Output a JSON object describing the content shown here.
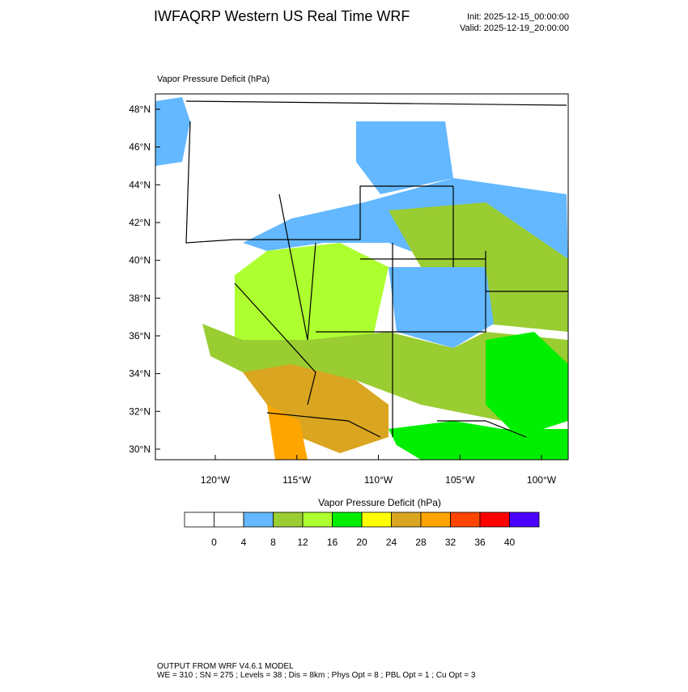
{
  "header": {
    "title": "IWFAQRP Western US Real Time WRF",
    "init": "Init: 2025-12-15_00:00:00",
    "valid": "Valid: 2025-12-19_20:00:00"
  },
  "map": {
    "label": "Vapor Pressure Deficit   (hPa)",
    "lat_ticks": [
      {
        "value": 48,
        "label": "48°N"
      },
      {
        "value": 46,
        "label": "46°N"
      },
      {
        "value": 44,
        "label": "44°N"
      },
      {
        "value": 42,
        "label": "42°N"
      },
      {
        "value": 40,
        "label": "40°N"
      },
      {
        "value": 38,
        "label": "38°N"
      },
      {
        "value": 36,
        "label": "36°N"
      },
      {
        "value": 34,
        "label": "34°N"
      },
      {
        "value": 32,
        "label": "32°N"
      },
      {
        "value": 30,
        "label": "30°N"
      }
    ],
    "lon_ticks": [
      {
        "value": -120,
        "label": "120°W"
      },
      {
        "value": -115,
        "label": "115°W"
      },
      {
        "value": -110,
        "label": "110°W"
      },
      {
        "value": -105,
        "label": "105°W"
      },
      {
        "value": -100,
        "label": "100°W"
      }
    ]
  },
  "colorbar": {
    "title": "Vapor Pressure Deficit  (hPa)",
    "levels": [
      0,
      4,
      8,
      12,
      16,
      20,
      24,
      28,
      32,
      36,
      40
    ],
    "colors": [
      "#ffffff",
      "#ffffff",
      "#63b8ff",
      "#9acd32",
      "#adff2f",
      "#00ee00",
      "#ffff00",
      "#daa520",
      "#ffa500",
      "#ff4500",
      "#ff0000",
      "#4b00ff"
    ]
  },
  "footer": {
    "line1": "OUTPUT FROM WRF V4.6.1 MODEL",
    "line2": "WE = 310 ; SN = 275 ; Levels = 38 ; Dis = 8km ; Phys Opt = 8 ; PBL Opt = 1 ; Cu Opt = 3"
  }
}
